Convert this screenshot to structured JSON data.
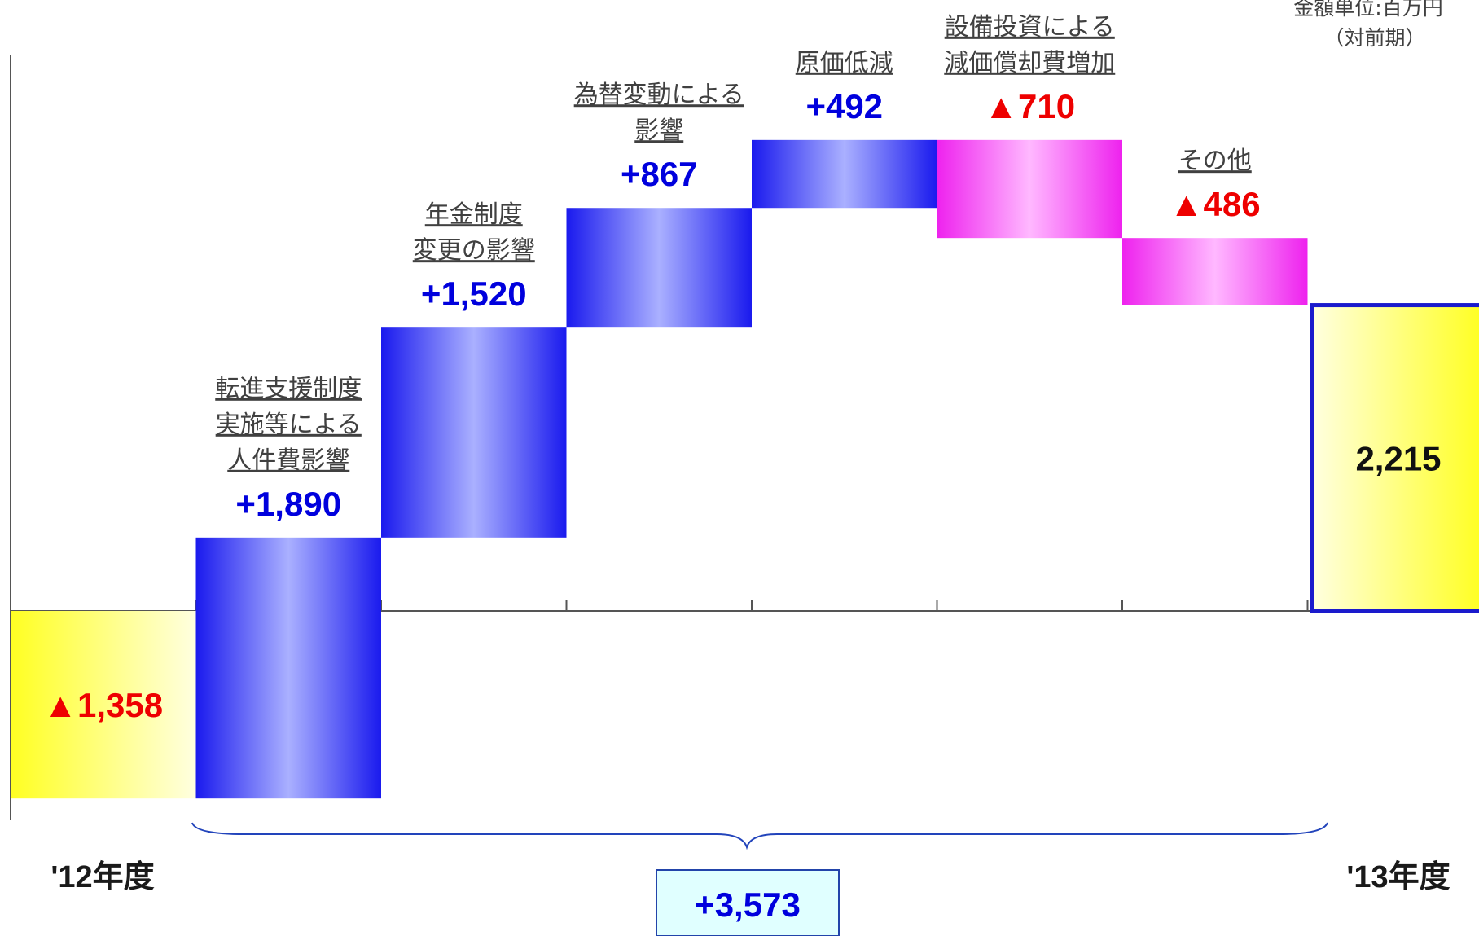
{
  "chart_data": {
    "type": "waterfall",
    "unit_note": [
      "金額単位:百万円",
      "（対前期）"
    ],
    "start": {
      "label": "'12年度",
      "value": -1358,
      "value_label": "▲1,358"
    },
    "end": {
      "label": "'13年度",
      "value": 2215,
      "value_label": "2,215"
    },
    "steps": [
      {
        "label": [
          "転進支援制度",
          "実施等による",
          "人件費影響"
        ],
        "value": 1890,
        "value_label": "+1,890"
      },
      {
        "label": [
          "年金制度",
          "変更の影響"
        ],
        "value": 1520,
        "value_label": "+1,520"
      },
      {
        "label": [
          "為替変動による",
          "影響"
        ],
        "value": 867,
        "value_label": "+867"
      },
      {
        "label": [
          "原価低減"
        ],
        "value": 492,
        "value_label": "+492"
      },
      {
        "label": [
          "設備投資による",
          "減価償却費増加"
        ],
        "value": -710,
        "value_label": "▲710"
      },
      {
        "label": [
          "その他"
        ],
        "value": -486,
        "value_label": "▲486"
      }
    ],
    "total_change": {
      "value": 3573,
      "value_label": "+3,573"
    },
    "colors": {
      "start_end_fill_from": "#ffff22",
      "start_end_fill_to": "#ffffe0",
      "increase_fill_edge": "#1a1aee",
      "increase_fill_mid": "#aab0ff",
      "decrease_fill_edge": "#ee22ee",
      "decrease_fill_mid": "#ffb8ff",
      "increase_text": "#0000dd",
      "decrease_text": "#ee0000",
      "end_border": "#1a1acc",
      "total_box_fill": "#e0ffff",
      "total_box_border": "#2244aa"
    }
  }
}
